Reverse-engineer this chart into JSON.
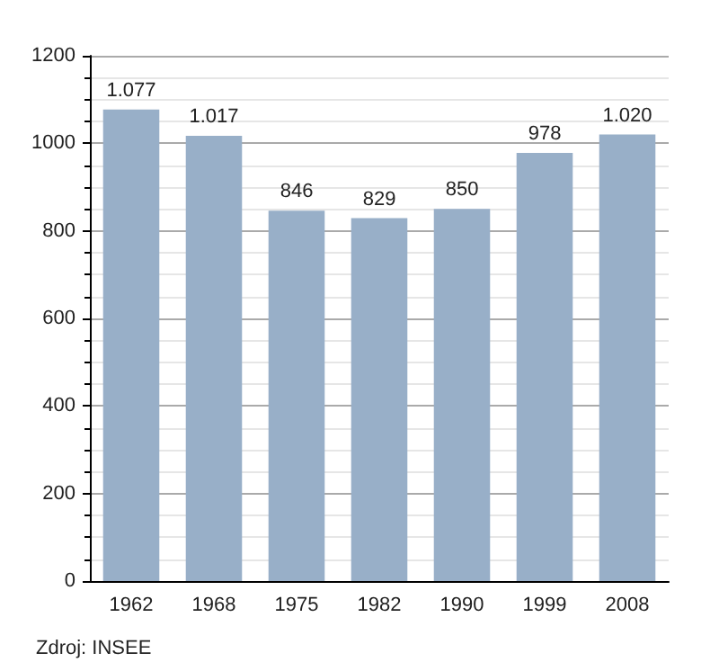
{
  "chart_data": {
    "type": "bar",
    "categories": [
      "1962",
      "1968",
      "1975",
      "1982",
      "1990",
      "1999",
      "2008"
    ],
    "values": [
      1077,
      1017,
      846,
      829,
      850,
      978,
      1020
    ],
    "value_labels": [
      "1.077",
      "1.017",
      "846",
      "829",
      "850",
      "978",
      "1.020"
    ],
    "color": "#98afc8",
    "ylim": [
      0,
      1200
    ],
    "yticks": [
      0,
      200,
      400,
      600,
      800,
      1000,
      1200
    ],
    "grid": true,
    "annotations": [
      "Zdroj: INSEE"
    ]
  }
}
